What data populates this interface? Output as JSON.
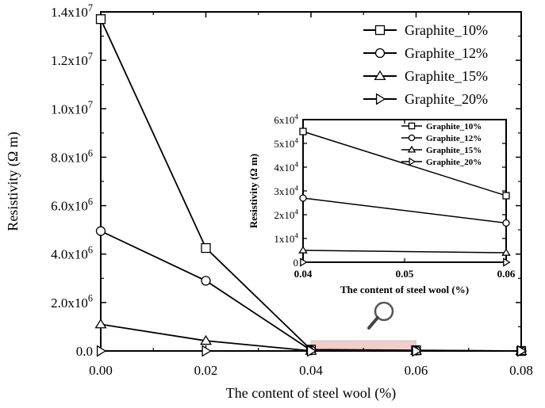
{
  "chart_data": [
    {
      "type": "line",
      "xlabel": "The content of steel wool (%)",
      "ylabel": "Resistivity (Ω m)",
      "xlim": [
        0.0,
        0.08
      ],
      "ylim": [
        0,
        14000000
      ],
      "x_ticks": [
        "0.00",
        "0.02",
        "0.04",
        "0.06",
        "0.08"
      ],
      "y_ticks": [
        {
          "value": 0,
          "mantissa": "0.0",
          "exp": ""
        },
        {
          "value": 2000000,
          "mantissa": "2.0x10",
          "exp": "6"
        },
        {
          "value": 4000000,
          "mantissa": "4.0x10",
          "exp": "6"
        },
        {
          "value": 6000000,
          "mantissa": "6.0x10",
          "exp": "6"
        },
        {
          "value": 8000000,
          "mantissa": "8.0x10",
          "exp": "6"
        },
        {
          "value": 10000000,
          "mantissa": "1.0x10",
          "exp": "7"
        },
        {
          "value": 12000000,
          "mantissa": "1.2x10",
          "exp": "7"
        },
        {
          "value": 14000000,
          "mantissa": "1.4x10",
          "exp": "7"
        }
      ],
      "x": [
        0.0,
        0.02,
        0.04,
        0.06,
        0.08
      ],
      "series": [
        {
          "name": "Graphite_10%",
          "marker": "square",
          "values": [
            13700000,
            4250000,
            55000,
            28000,
            0
          ]
        },
        {
          "name": "Graphite_12%",
          "marker": "circle",
          "values": [
            4950000,
            2900000,
            27000,
            16500,
            0
          ]
        },
        {
          "name": "Graphite_15%",
          "marker": "triangle-up",
          "values": [
            1100000,
            420000,
            5000,
            4000,
            0
          ]
        },
        {
          "name": "Graphite_20%",
          "marker": "triangle-right",
          "values": [
            0,
            0,
            0,
            0,
            0
          ]
        }
      ],
      "legend": "top-right",
      "grid": false,
      "highlight_region": {
        "x": [
          0.04,
          0.06
        ]
      },
      "highlight_color": "#e9a3a3"
    },
    {
      "type": "line",
      "inset": true,
      "xlabel": "The content of steel wool (%)",
      "ylabel": "Resistivity (Ω m)",
      "xlim": [
        0.04,
        0.06
      ],
      "ylim": [
        0,
        60000
      ],
      "x_ticks": [
        "0.04",
        "0.05",
        "0.06"
      ],
      "y_ticks": [
        {
          "value": 0,
          "mantissa": "0",
          "exp": ""
        },
        {
          "value": 10000,
          "mantissa": "1x10",
          "exp": "4"
        },
        {
          "value": 20000,
          "mantissa": "2x10",
          "exp": "4"
        },
        {
          "value": 30000,
          "mantissa": "3x10",
          "exp": "4"
        },
        {
          "value": 40000,
          "mantissa": "4x10",
          "exp": "4"
        },
        {
          "value": 50000,
          "mantissa": "5x10",
          "exp": "4"
        },
        {
          "value": 60000,
          "mantissa": "6x10",
          "exp": "4"
        }
      ],
      "x": [
        0.04,
        0.06
      ],
      "series": [
        {
          "name": "Graphite_10%",
          "marker": "square",
          "values": [
            55000,
            28000
          ]
        },
        {
          "name": "Graphite_12%",
          "marker": "circle",
          "values": [
            27000,
            16500
          ]
        },
        {
          "name": "Graphite_15%",
          "marker": "triangle-up",
          "values": [
            5000,
            4000
          ]
        },
        {
          "name": "Graphite_20%",
          "marker": "triangle-right",
          "values": [
            0,
            0
          ]
        }
      ],
      "legend": "top-right",
      "grid": false
    }
  ],
  "icons": {
    "zoom": "magnifier-icon"
  }
}
